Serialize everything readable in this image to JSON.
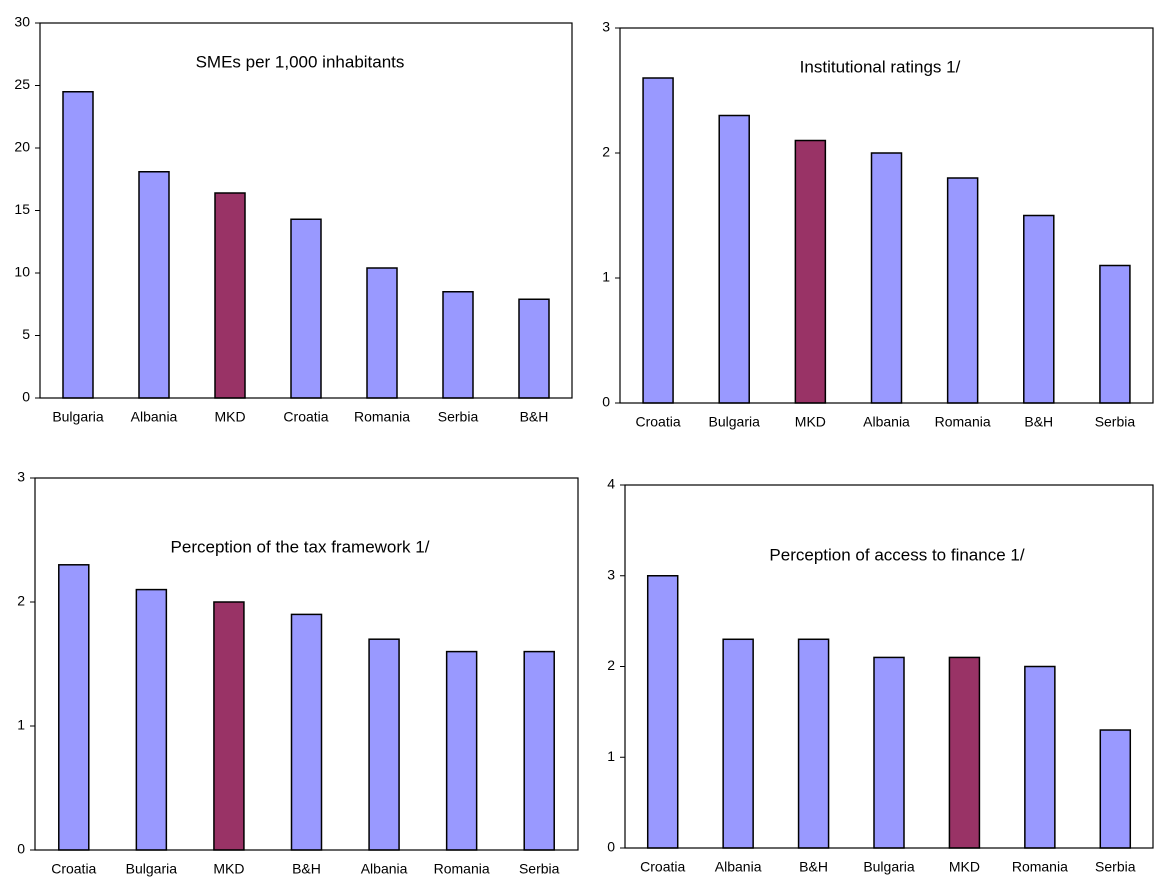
{
  "chart_data": [
    {
      "type": "bar",
      "title": "SMEs per 1,000 inhabitants",
      "categories": [
        "Bulgaria",
        "Albania",
        "MKD",
        "Croatia",
        "Romania",
        "Serbia",
        "B&H"
      ],
      "values": [
        24.5,
        18.1,
        16.4,
        14.3,
        10.4,
        8.5,
        7.9
      ],
      "colors": [
        "#9999ff",
        "#9999ff",
        "#993366",
        "#9999ff",
        "#9999ff",
        "#9999ff",
        "#9999ff"
      ],
      "ylim": [
        0,
        30
      ],
      "yticks": [
        0,
        5,
        10,
        15,
        20,
        25,
        30
      ]
    },
    {
      "type": "bar",
      "title": "Institutional ratings 1/",
      "categories": [
        "Croatia",
        "Bulgaria",
        "MKD",
        "Albania",
        "Romania",
        "B&H",
        "Serbia"
      ],
      "values": [
        2.6,
        2.3,
        2.1,
        2.0,
        1.8,
        1.5,
        1.1
      ],
      "colors": [
        "#9999ff",
        "#9999ff",
        "#993366",
        "#9999ff",
        "#9999ff",
        "#9999ff",
        "#9999ff"
      ],
      "ylim": [
        0,
        3
      ],
      "yticks": [
        0,
        1,
        2,
        3
      ]
    },
    {
      "type": "bar",
      "title": "Perception of the tax framework 1/",
      "categories": [
        "Croatia",
        "Bulgaria",
        "MKD",
        "B&H",
        "Albania",
        "Romania",
        "Serbia"
      ],
      "values": [
        2.3,
        2.1,
        2.0,
        1.9,
        1.7,
        1.6,
        1.6
      ],
      "colors": [
        "#9999ff",
        "#9999ff",
        "#993366",
        "#9999ff",
        "#9999ff",
        "#9999ff",
        "#9999ff"
      ],
      "ylim": [
        0,
        3
      ],
      "yticks": [
        0,
        1,
        2,
        3
      ]
    },
    {
      "type": "bar",
      "title": "Perception of access to finance 1/",
      "categories": [
        "Croatia",
        "Albania",
        "B&H",
        "Bulgaria",
        "MKD",
        "Romania",
        "Serbia"
      ],
      "values": [
        3.0,
        2.3,
        2.3,
        2.1,
        2.1,
        2.0,
        1.3
      ],
      "colors": [
        "#9999ff",
        "#9999ff",
        "#9999ff",
        "#9999ff",
        "#993366",
        "#9999ff",
        "#9999ff"
      ],
      "ylim": [
        0,
        4
      ],
      "yticks": [
        0,
        1,
        2,
        3,
        4
      ]
    }
  ]
}
